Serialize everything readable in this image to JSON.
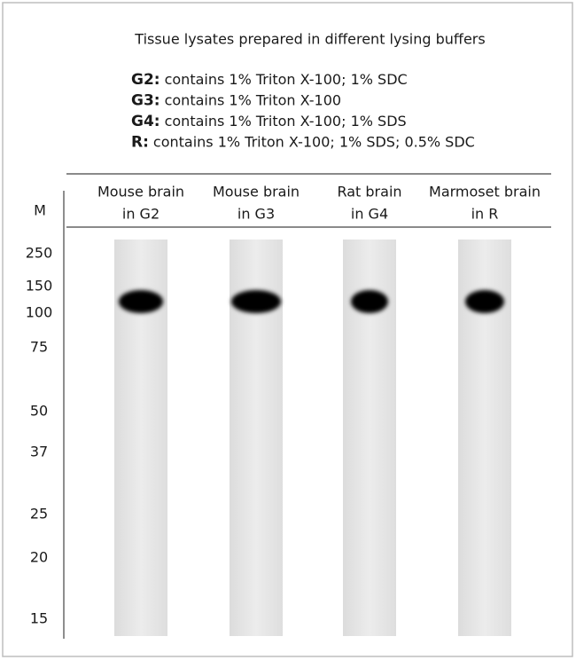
{
  "title": "Tissue lysates prepared in different lysing buffers",
  "buffers": [
    {
      "key": "G2:",
      "text": "contains 1% Triton X-100; 1% SDC"
    },
    {
      "key": "G3:",
      "text": "contains 1% Triton X-100"
    },
    {
      "key": "G4:",
      "text": "contains 1% Triton X-100; 1% SDS"
    },
    {
      "key": "R:",
      "text": "contains 1% Triton X-100; 1% SDS; 0.5% SDC"
    }
  ],
  "marker_header": "M",
  "lanes": [
    {
      "label": [
        "Mouse brain",
        "in G2"
      ]
    },
    {
      "label": [
        "Mouse brain",
        "in G3"
      ]
    },
    {
      "label": [
        "Rat brain",
        "in G4"
      ]
    },
    {
      "label": [
        "Marmoset brain",
        "in R"
      ]
    }
  ],
  "markers": [
    "250",
    "150",
    "100",
    "75",
    "50",
    "37",
    "25",
    "20",
    "15"
  ]
}
